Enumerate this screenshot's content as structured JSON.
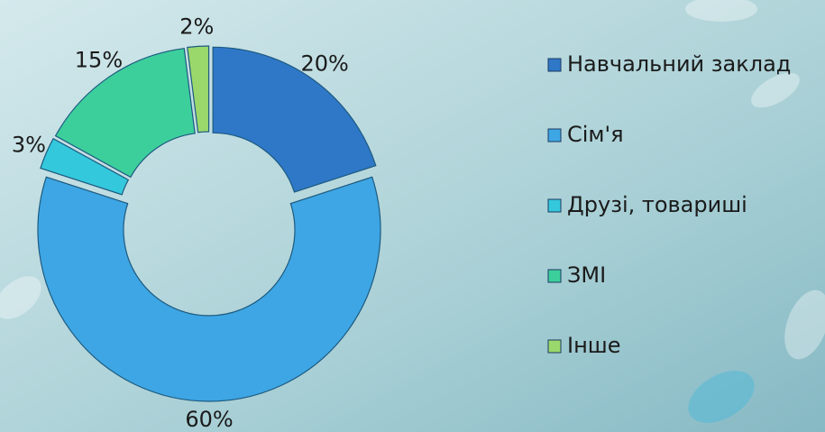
{
  "chart_data": {
    "type": "donut",
    "categories": [
      "Навчальний заклад",
      "Сім'я",
      "Друзі, товариші",
      "ЗМІ",
      "Інше"
    ],
    "values": [
      20,
      60,
      3,
      15,
      2
    ],
    "value_labels": [
      "20%",
      "60%",
      "3%",
      "15%",
      "2%"
    ],
    "colors": [
      "#2f78c8",
      "#3ea6e4",
      "#34c8dc",
      "#3ccf9c",
      "#9bd86c"
    ],
    "legend": "right"
  }
}
